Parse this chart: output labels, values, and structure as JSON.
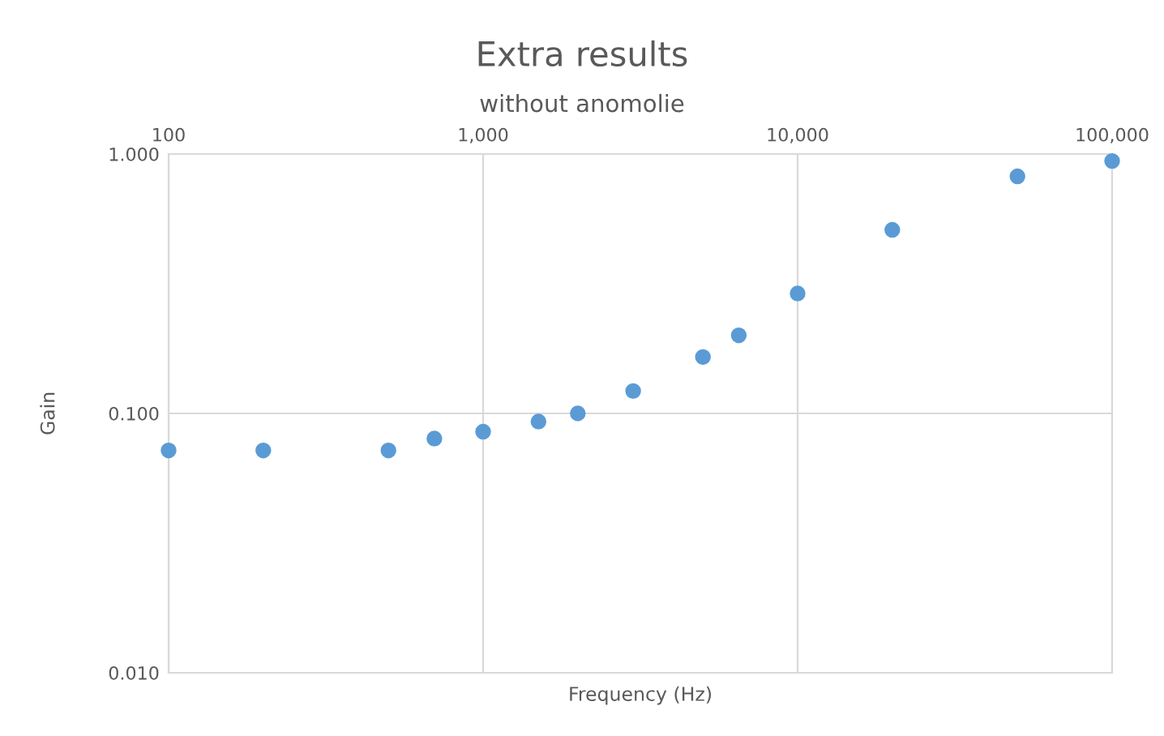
{
  "chart_data": {
    "type": "scatter",
    "title": "Extra results",
    "subtitle": "without anomolie",
    "xlabel": "Frequency (Hz)",
    "ylabel": "Gain",
    "log": "xy",
    "grid": true,
    "marker": "circle",
    "x": [
      100,
      200,
      500,
      700,
      1000,
      1500,
      2000,
      3000,
      5000,
      6500,
      10000,
      20000,
      50000,
      100000
    ],
    "series": [
      {
        "color": "#5b9bd5",
        "values": [
          0.072,
          0.072,
          0.072,
          0.08,
          0.085,
          0.093,
          0.1,
          0.122,
          0.165,
          0.2,
          0.29,
          0.51,
          0.82,
          0.94
        ]
      }
    ],
    "xlim": [
      100,
      100000
    ],
    "ylim": [
      0.01,
      1
    ],
    "xticks": [
      100,
      {
        "value": 1000,
        "label": "1,000"
      },
      {
        "value": 10000,
        "label": "10,000"
      },
      {
        "value": 100000,
        "label": "100,000"
      }
    ],
    "yticks": [
      {
        "value": 0.01,
        "label": "0.010"
      },
      {
        "value": 0.1,
        "label": "0.100"
      },
      {
        "value": 1,
        "label": "1.000"
      }
    ]
  }
}
